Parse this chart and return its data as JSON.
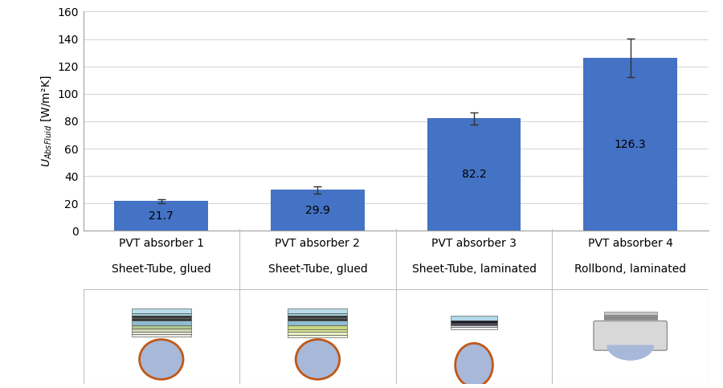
{
  "labels_line1": [
    "PVT absorber 1",
    "PVT absorber 2",
    "PVT absorber 3",
    "PVT absorber 4"
  ],
  "labels_line2": [
    "Sheet-Tube, glued",
    "Sheet-Tube, glued",
    "Sheet-Tube, laminated",
    "Rollbond, laminated"
  ],
  "values": [
    21.7,
    29.9,
    82.2,
    126.3
  ],
  "errors": [
    1.5,
    2.5,
    4.5,
    14.0
  ],
  "bar_color": "#4472C4",
  "bar_edgecolor": "#4472C4",
  "ylim": [
    0,
    160
  ],
  "yticks": [
    0,
    20,
    40,
    60,
    80,
    100,
    120,
    140,
    160
  ],
  "value_labels": [
    "21.7",
    "29.9",
    "82.2",
    "126.3"
  ],
  "background_color": "#ffffff",
  "grid_color": "#d8d8d8",
  "errorbar_color": "#404040",
  "tick_fontsize": 10,
  "ylabel_fontsize": 10
}
